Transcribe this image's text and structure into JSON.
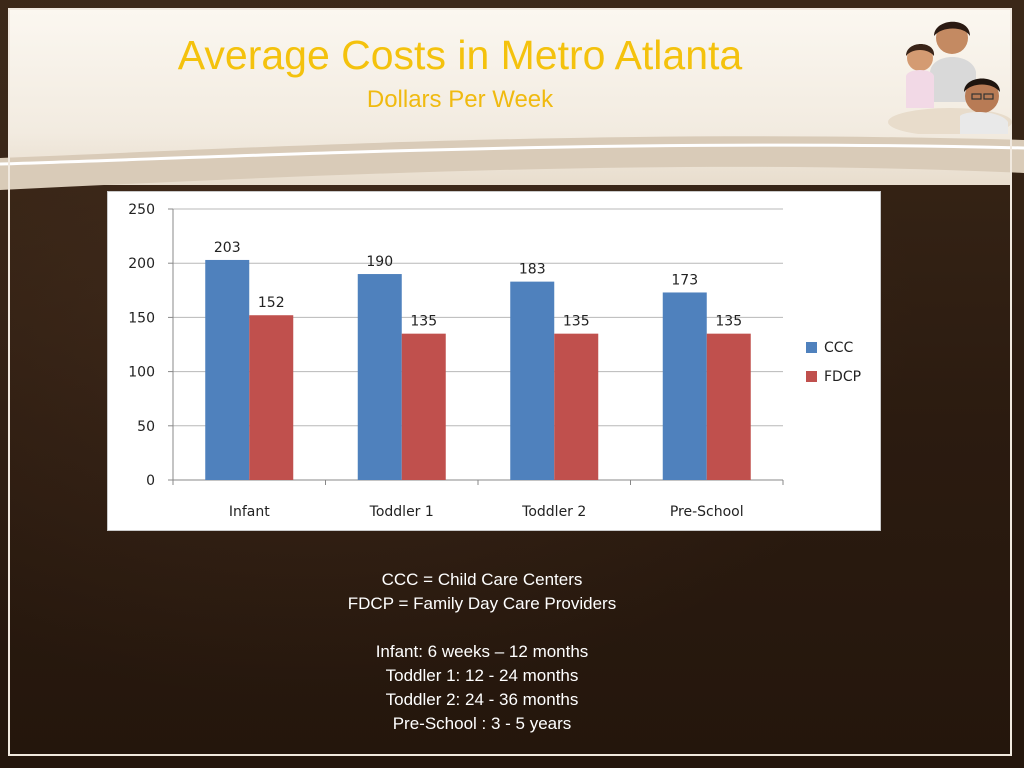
{
  "slide": {
    "title": "Average Costs in Metro Atlanta",
    "subtitle": "Dollars Per Week",
    "photo_icon": "family-photo-icon"
  },
  "chart_data": {
    "type": "bar",
    "title": "",
    "xlabel": "",
    "ylabel": "",
    "categories": [
      "Infant",
      "Toddler 1",
      "Toddler 2",
      "Pre-School"
    ],
    "series": [
      {
        "name": "CCC",
        "values": [
          203,
          190,
          183,
          173
        ],
        "color": "#4f81bd"
      },
      {
        "name": "FDCP",
        "values": [
          152,
          135,
          135,
          135
        ],
        "color": "#c0504d"
      }
    ],
    "ylim": [
      0,
      250
    ],
    "yticks": [
      "0",
      "50",
      "100",
      "150",
      "200",
      "250"
    ],
    "grid": true,
    "legend": "right"
  },
  "notes": {
    "definitions": [
      "CCC = Child Care Centers",
      "FDCP = Family Day Care Providers"
    ],
    "ages": [
      "Infant:  6 weeks – 12 months",
      "Toddler 1:  12 - 24 months",
      "Toddler 2:  24 - 36 months",
      "Pre-School :  3 - 5 years"
    ]
  }
}
